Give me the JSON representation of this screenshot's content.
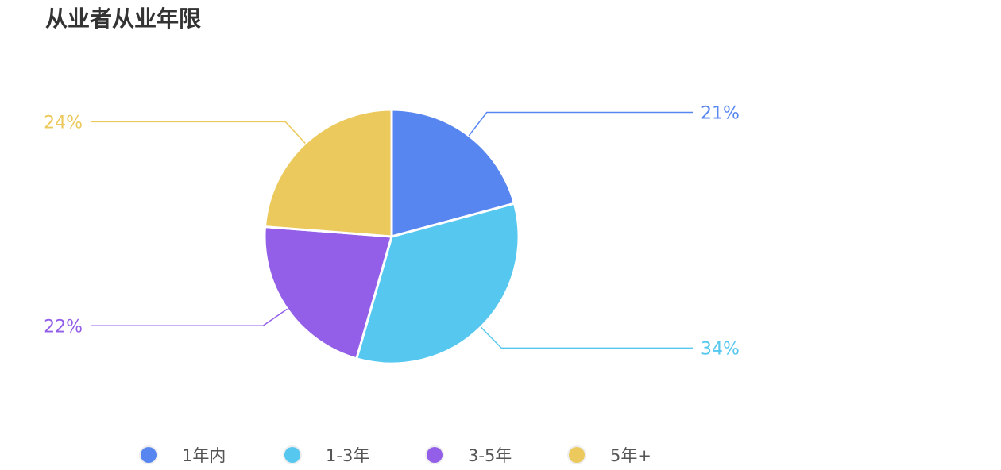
{
  "chart_data": {
    "type": "pie",
    "title": "从业者从业年限",
    "categories": [
      "1年内",
      "1-3年",
      "3-5年",
      "5年+"
    ],
    "values": [
      21,
      34,
      22,
      24
    ],
    "labels": [
      "21%",
      "34%",
      "22%",
      "24%"
    ],
    "colors": [
      "#5886F0",
      "#56C8F0",
      "#935FE8",
      "#ECC95C"
    ],
    "start": "top, clockwise",
    "legend": "bottom"
  }
}
